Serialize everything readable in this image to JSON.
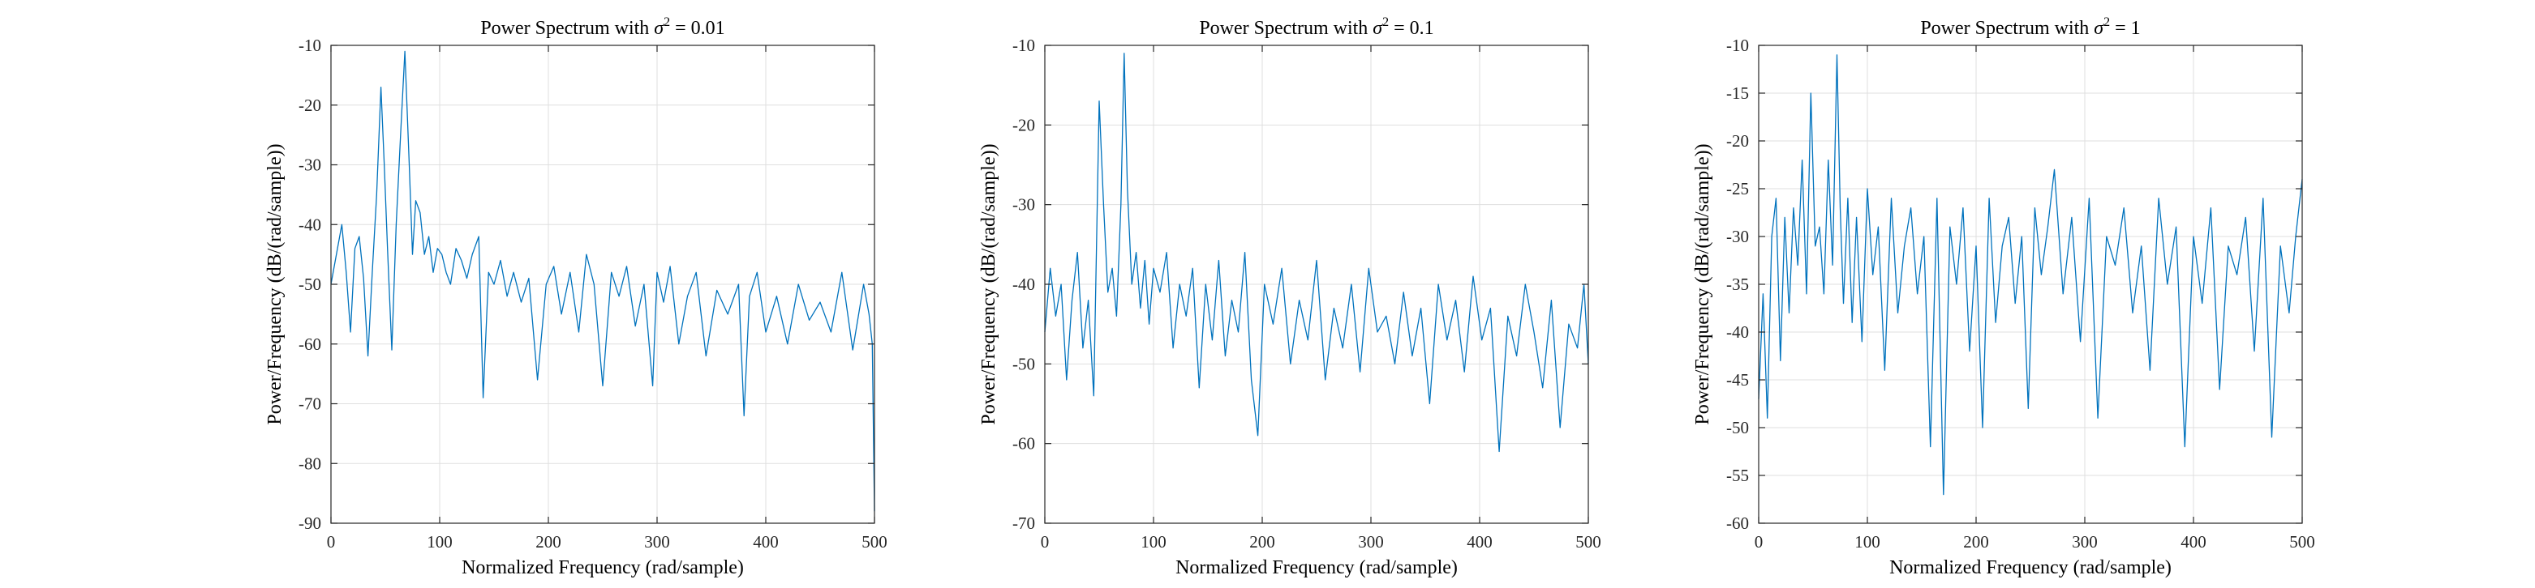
{
  "colors": {
    "trace": "#0072BD",
    "grid": "#dfdfdf",
    "axes": "#262626"
  },
  "chart_data": [
    {
      "type": "line",
      "title_prefix": "Power Spectrum with ",
      "title_symbol": "σ",
      "title_exponent": "2",
      "title_suffix": " = 0.01",
      "xlabel": "Normalized Frequency (rad/sample)",
      "ylabel": "Power/Frequency (dB/(rad/sample))",
      "xlim": [
        0,
        500
      ],
      "ylim": [
        -90,
        -10
      ],
      "xticks": [
        0,
        100,
        200,
        300,
        400,
        500
      ],
      "yticks": [
        -90,
        -80,
        -70,
        -60,
        -50,
        -40,
        -30,
        -20,
        -10
      ],
      "grid": true,
      "series": [
        {
          "color": "#0072BD",
          "x": [
            0,
            5,
            10,
            14,
            18,
            22,
            26,
            30,
            34,
            38,
            42,
            46,
            49,
            52,
            56,
            60,
            64,
            68,
            72,
            75,
            78,
            82,
            86,
            90,
            94,
            98,
            102,
            106,
            110,
            115,
            120,
            125,
            130,
            136,
            140,
            145,
            150,
            156,
            162,
            168,
            175,
            182,
            190,
            198,
            205,
            212,
            220,
            228,
            235,
            242,
            250,
            258,
            265,
            272,
            280,
            288,
            296,
            300,
            306,
            312,
            320,
            328,
            336,
            345,
            355,
            365,
            375,
            380,
            385,
            392,
            400,
            410,
            420,
            430,
            440,
            450,
            460,
            470,
            480,
            490,
            495,
            498,
            500
          ],
          "y": [
            -50,
            -45,
            -40,
            -48,
            -58,
            -44,
            -42,
            -49,
            -62,
            -48,
            -35,
            -17,
            -30,
            -44,
            -61,
            -40,
            -25,
            -11,
            -30,
            -45,
            -36,
            -38,
            -45,
            -42,
            -48,
            -44,
            -45,
            -48,
            -50,
            -44,
            -46,
            -49,
            -45,
            -42,
            -69,
            -48,
            -50,
            -46,
            -52,
            -48,
            -53,
            -49,
            -66,
            -50,
            -47,
            -55,
            -48,
            -58,
            -45,
            -50,
            -67,
            -48,
            -52,
            -47,
            -57,
            -50,
            -67,
            -48,
            -53,
            -47,
            -60,
            -52,
            -48,
            -62,
            -51,
            -55,
            -50,
            -72,
            -52,
            -48,
            -58,
            -52,
            -60,
            -50,
            -56,
            -53,
            -58,
            -48,
            -61,
            -50,
            -55,
            -60,
            -88
          ]
        }
      ]
    },
    {
      "type": "line",
      "title_prefix": "Power Spectrum with ",
      "title_symbol": "σ",
      "title_exponent": "2",
      "title_suffix": " = 0.1",
      "xlabel": "Normalized Frequency (rad/sample)",
      "ylabel": "Power/Frequency (dB/(rad/sample))",
      "xlim": [
        0,
        500
      ],
      "ylim": [
        -70,
        -10
      ],
      "xticks": [
        0,
        100,
        200,
        300,
        400,
        500
      ],
      "yticks": [
        -70,
        -60,
        -50,
        -40,
        -30,
        -20,
        -10
      ],
      "grid": true,
      "series": [
        {
          "color": "#0072BD",
          "x": [
            0,
            5,
            10,
            15,
            20,
            25,
            30,
            35,
            40,
            45,
            50,
            54,
            58,
            62,
            66,
            70,
            73,
            76,
            80,
            84,
            88,
            92,
            96,
            100,
            106,
            112,
            118,
            124,
            130,
            136,
            142,
            148,
            154,
            160,
            166,
            172,
            178,
            184,
            190,
            196,
            202,
            210,
            218,
            226,
            234,
            242,
            250,
            258,
            266,
            274,
            282,
            290,
            298,
            306,
            314,
            322,
            330,
            338,
            346,
            354,
            362,
            370,
            378,
            386,
            394,
            402,
            410,
            418,
            426,
            434,
            442,
            450,
            458,
            466,
            474,
            482,
            490,
            496,
            500
          ],
          "y": [
            -46,
            -38,
            -44,
            -40,
            -52,
            -42,
            -36,
            -48,
            -42,
            -54,
            -17,
            -30,
            -41,
            -38,
            -44,
            -30,
            -11,
            -28,
            -40,
            -36,
            -43,
            -37,
            -45,
            -38,
            -41,
            -36,
            -48,
            -40,
            -44,
            -38,
            -53,
            -40,
            -47,
            -37,
            -49,
            -42,
            -46,
            -36,
            -52,
            -59,
            -40,
            -45,
            -38,
            -50,
            -42,
            -47,
            -37,
            -52,
            -43,
            -48,
            -40,
            -51,
            -38,
            -46,
            -44,
            -50,
            -41,
            -49,
            -43,
            -55,
            -40,
            -47,
            -42,
            -51,
            -39,
            -47,
            -43,
            -61,
            -44,
            -49,
            -40,
            -46,
            -53,
            -42,
            -58,
            -45,
            -48,
            -40,
            -50
          ]
        }
      ]
    },
    {
      "type": "line",
      "title_prefix": "Power Spectrum with ",
      "title_symbol": "σ",
      "title_exponent": "2",
      "title_suffix": " = 1",
      "xlabel": "Normalized Frequency (rad/sample)",
      "ylabel": "Power/Frequency (dB/(rad/sample))",
      "xlim": [
        0,
        500
      ],
      "ylim": [
        -60,
        -10
      ],
      "xticks": [
        0,
        100,
        200,
        300,
        400,
        500
      ],
      "yticks": [
        -60,
        -55,
        -50,
        -45,
        -40,
        -35,
        -30,
        -25,
        -20,
        -15,
        -10
      ],
      "grid": true,
      "series": [
        {
          "color": "#0072BD",
          "x": [
            0,
            4,
            8,
            12,
            16,
            20,
            24,
            28,
            32,
            36,
            40,
            44,
            48,
            52,
            56,
            60,
            64,
            68,
            72,
            75,
            78,
            82,
            86,
            90,
            95,
            100,
            105,
            110,
            116,
            122,
            128,
            134,
            140,
            146,
            152,
            158,
            164,
            170,
            176,
            182,
            188,
            194,
            200,
            206,
            212,
            218,
            224,
            230,
            236,
            242,
            248,
            254,
            260,
            266,
            272,
            280,
            288,
            296,
            304,
            312,
            320,
            328,
            336,
            344,
            352,
            360,
            368,
            376,
            384,
            392,
            400,
            408,
            416,
            424,
            432,
            440,
            448,
            456,
            464,
            472,
            480,
            488,
            494,
            498,
            500
          ],
          "y": [
            -47,
            -36,
            -49,
            -30,
            -26,
            -43,
            -28,
            -38,
            -27,
            -33,
            -22,
            -36,
            -15,
            -31,
            -29,
            -36,
            -22,
            -33,
            -11,
            -27,
            -37,
            -26,
            -39,
            -28,
            -41,
            -25,
            -34,
            -29,
            -44,
            -26,
            -38,
            -31,
            -27,
            -36,
            -30,
            -52,
            -26,
            -57,
            -29,
            -35,
            -27,
            -42,
            -31,
            -50,
            -26,
            -39,
            -31,
            -28,
            -37,
            -30,
            -48,
            -27,
            -34,
            -29,
            -23,
            -36,
            -28,
            -41,
            -26,
            -49,
            -30,
            -33,
            -27,
            -38,
            -31,
            -44,
            -26,
            -35,
            -29,
            -52,
            -30,
            -37,
            -27,
            -46,
            -31,
            -34,
            -28,
            -42,
            -26,
            -51,
            -31,
            -38,
            -30,
            -26,
            -24
          ]
        }
      ]
    }
  ]
}
